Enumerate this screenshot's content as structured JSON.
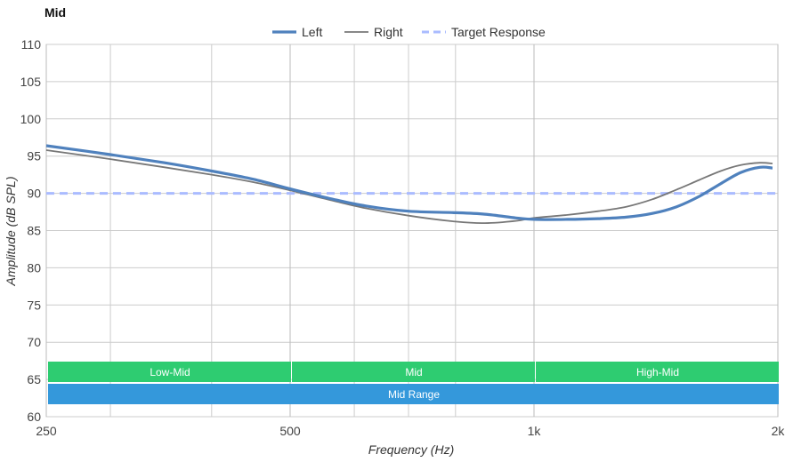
{
  "chart_data": {
    "type": "line",
    "title": "Mid",
    "xlabel": "Frequency (Hz)",
    "ylabel": "Amplitude (dB SPL)",
    "x_scale": "log",
    "xlim": [
      250,
      2000
    ],
    "ylim": [
      60,
      110
    ],
    "x_ticks": [
      {
        "value": 250,
        "label": "250"
      },
      {
        "value": 500,
        "label": "500"
      },
      {
        "value": 1000,
        "label": "1k"
      },
      {
        "value": 2000,
        "label": "2k"
      }
    ],
    "x_minor_gridlines": [
      300,
      400,
      600,
      700,
      800
    ],
    "y_ticks": [
      60,
      65,
      70,
      75,
      80,
      85,
      90,
      95,
      100,
      105,
      110
    ],
    "grid": true,
    "legend_position": "top-center",
    "series": [
      {
        "name": "Left",
        "color": "#4f81bd",
        "style": "solid-thick",
        "points": [
          [
            250,
            96.4
          ],
          [
            300,
            95.2
          ],
          [
            350,
            94.1
          ],
          [
            400,
            93.0
          ],
          [
            450,
            91.9
          ],
          [
            500,
            90.6
          ],
          [
            560,
            89.3
          ],
          [
            620,
            88.3
          ],
          [
            700,
            87.6
          ],
          [
            800,
            87.4
          ],
          [
            870,
            87.2
          ],
          [
            950,
            86.7
          ],
          [
            1000,
            86.5
          ],
          [
            1100,
            86.5
          ],
          [
            1200,
            86.6
          ],
          [
            1300,
            86.8
          ],
          [
            1400,
            87.3
          ],
          [
            1500,
            88.2
          ],
          [
            1600,
            89.6
          ],
          [
            1700,
            91.3
          ],
          [
            1800,
            92.8
          ],
          [
            1900,
            93.5
          ],
          [
            1970,
            93.4
          ]
        ]
      },
      {
        "name": "Right",
        "color": "#777777",
        "style": "solid-thin",
        "points": [
          [
            250,
            95.8
          ],
          [
            300,
            94.6
          ],
          [
            350,
            93.5
          ],
          [
            400,
            92.5
          ],
          [
            450,
            91.5
          ],
          [
            500,
            90.4
          ],
          [
            560,
            89.1
          ],
          [
            620,
            88.0
          ],
          [
            700,
            87.0
          ],
          [
            800,
            86.2
          ],
          [
            870,
            86.0
          ],
          [
            950,
            86.3
          ],
          [
            1000,
            86.7
          ],
          [
            1100,
            87.1
          ],
          [
            1200,
            87.6
          ],
          [
            1300,
            88.2
          ],
          [
            1400,
            89.2
          ],
          [
            1500,
            90.5
          ],
          [
            1600,
            91.8
          ],
          [
            1700,
            93.0
          ],
          [
            1800,
            93.8
          ],
          [
            1900,
            94.1
          ],
          [
            1970,
            94.0
          ]
        ]
      },
      {
        "name": "Target Response",
        "color": "#aabbff",
        "style": "dashed",
        "points": [
          [
            250,
            90
          ],
          [
            2000,
            90
          ]
        ]
      }
    ],
    "bands": [
      {
        "label": "Low-Mid",
        "x_start": 250,
        "x_end": 500,
        "color": "#2ecc71",
        "row": 0
      },
      {
        "label": "Mid",
        "x_start": 500,
        "x_end": 1000,
        "color": "#2ecc71",
        "row": 0
      },
      {
        "label": "High-Mid",
        "x_start": 1000,
        "x_end": 2000,
        "color": "#2ecc71",
        "row": 0
      },
      {
        "label": "Mid Range",
        "x_start": 250,
        "x_end": 2000,
        "color": "#3498db",
        "row": 1
      }
    ]
  }
}
